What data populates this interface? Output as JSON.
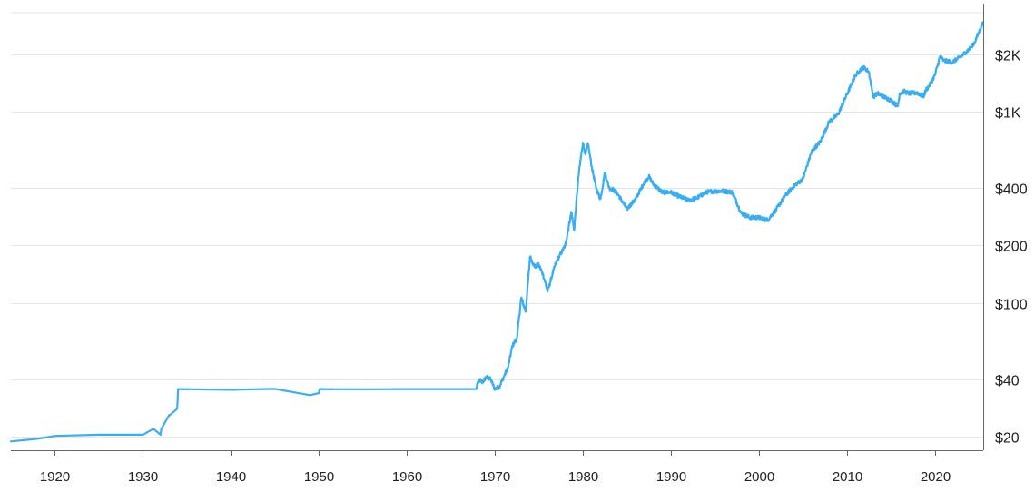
{
  "chart_data": {
    "type": "line",
    "y_scale": "log",
    "y_axis_position": "right",
    "grid": "horizontal",
    "legend": "none",
    "xlim": [
      1915,
      2025.5
    ],
    "ylim": [
      17,
      3300
    ],
    "x_ticks": [
      1920,
      1930,
      1940,
      1950,
      1960,
      1970,
      1980,
      1990,
      2000,
      2010,
      2020
    ],
    "y_ticks": [
      {
        "value": 20,
        "label": "$20"
      },
      {
        "value": 40,
        "label": "$40"
      },
      {
        "value": 100,
        "label": "$100"
      },
      {
        "value": 200,
        "label": "$200"
      },
      {
        "value": 400,
        "label": "$400"
      },
      {
        "value": 1000,
        "label": "$1K"
      },
      {
        "value": 2000,
        "label": "$2K"
      }
    ],
    "series": [
      {
        "color": "#3aaef0",
        "x": [
          1915,
          1918,
          1920,
          1925,
          1930,
          1931.2,
          1932,
          1932.1,
          1933,
          1933.1,
          1933.9,
          1934,
          1940,
          1945,
          1949,
          1950,
          1950.1,
          1955,
          1960,
          1967.9,
          1968,
          1968.3,
          1968.6,
          1969,
          1969.5,
          1970,
          1970.5,
          1971,
          1971.5,
          1972,
          1972.5,
          1973,
          1973.5,
          1974,
          1974.5,
          1975,
          1975.5,
          1976,
          1976.7,
          1977,
          1978,
          1978.7,
          1979,
          1979.5,
          1980,
          1980.3,
          1980.6,
          1981,
          1981.5,
          1982,
          1982.5,
          1983,
          1983.5,
          1984,
          1985,
          1986,
          1987,
          1987.5,
          1988,
          1989,
          1990,
          1991,
          1992,
          1993,
          1994,
          1995,
          1996,
          1997,
          1998,
          1999,
          2000,
          2001,
          2002,
          2003,
          2004,
          2005,
          2006,
          2007,
          2008,
          2009,
          2010,
          2011,
          2011.7,
          2012,
          2012.5,
          2013,
          2013.5,
          2014,
          2015,
          2015.8,
          2016,
          2016.5,
          2017,
          2018,
          2018.7,
          2019,
          2019.5,
          2020,
          2020.6,
          2021,
          2022,
          2023,
          2024,
          2024.5,
          2025,
          2025.5
        ],
        "values": [
          18.9,
          19.5,
          20.2,
          20.5,
          20.5,
          22,
          20.5,
          22,
          26,
          26,
          28,
          35.5,
          35.2,
          35.6,
          33,
          33.8,
          35.5,
          35.4,
          35.5,
          35.5,
          38,
          39.5,
          38.5,
          41,
          40,
          35.5,
          36.5,
          41,
          46,
          60,
          65,
          107,
          90,
          175,
          155,
          158,
          140,
          115,
          150,
          165,
          200,
          300,
          240,
          460,
          690,
          600,
          680,
          520,
          400,
          350,
          480,
          400,
          390,
          370,
          310,
          350,
          430,
          460,
          420,
          380,
          380,
          360,
          345,
          355,
          380,
          385,
          385,
          380,
          295,
          280,
          280,
          272,
          310,
          365,
          410,
          445,
          620,
          700,
          890,
          970,
          1230,
          1560,
          1690,
          1700,
          1620,
          1200,
          1250,
          1210,
          1150,
          1070,
          1250,
          1280,
          1250,
          1260,
          1200,
          1300,
          1400,
          1550,
          1950,
          1850,
          1820,
          1950,
          2150,
          2300,
          2600,
          2950
        ]
      }
    ]
  }
}
